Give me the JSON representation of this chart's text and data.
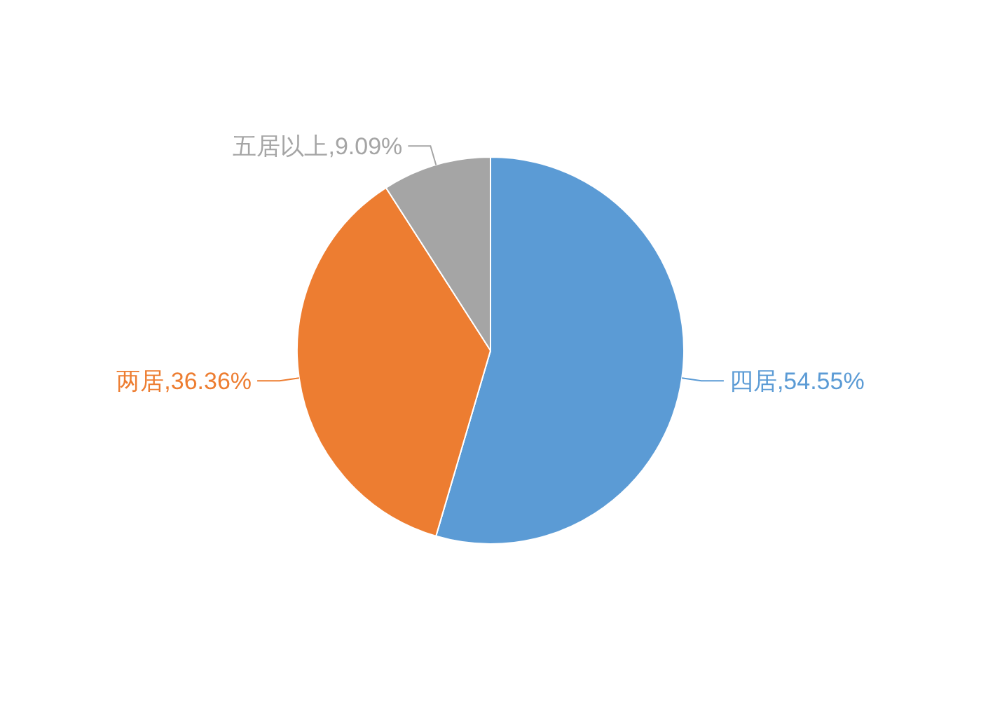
{
  "chart_data": {
    "type": "pie",
    "categories": [
      "四居",
      "两居",
      "五居以上"
    ],
    "values": [
      54.55,
      36.36,
      9.09
    ],
    "value_labels": [
      ",54.55%",
      ",36.36%",
      ",9.09%"
    ],
    "colors": [
      "#5b9bd5",
      "#ed7d31",
      "#a5a5a5"
    ]
  }
}
